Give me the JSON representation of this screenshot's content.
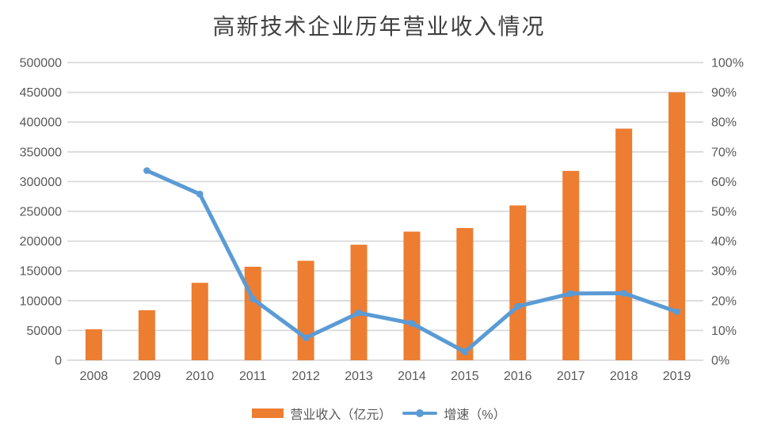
{
  "chart_data": {
    "type": "combo",
    "title": "高新技术企业历年营业收入情况",
    "categories": [
      "2008",
      "2009",
      "2010",
      "2011",
      "2012",
      "2013",
      "2014",
      "2015",
      "2016",
      "2017",
      "2018",
      "2019"
    ],
    "series": [
      {
        "name": "营业收入（亿元）",
        "type": "bar",
        "axis": "left",
        "color": "#ED7D31",
        "values": [
          52000,
          84000,
          130000,
          157000,
          167000,
          194000,
          216000,
          222000,
          260000,
          318000,
          389000,
          450000
        ]
      },
      {
        "name": "增速（%）",
        "type": "line",
        "axis": "right",
        "color": "#5B9BD5",
        "values": [
          null,
          63.7,
          55.8,
          20.6,
          7.5,
          15.9,
          12.4,
          2.8,
          18.1,
          22.4,
          22.5,
          16.3
        ]
      }
    ],
    "left_axis": {
      "min": 0,
      "max": 500000,
      "step": 50000,
      "tick_labels": [
        "0",
        "50000",
        "100000",
        "150000",
        "200000",
        "250000",
        "300000",
        "350000",
        "400000",
        "450000",
        "500000"
      ]
    },
    "right_axis": {
      "min": 0,
      "max": 100,
      "step": 10,
      "tick_labels": [
        "0%",
        "10%",
        "20%",
        "30%",
        "40%",
        "50%",
        "60%",
        "70%",
        "80%",
        "90%",
        "100%"
      ]
    },
    "grid": true,
    "legend_position": "bottom",
    "colors": {
      "grid": "#D9D9D9",
      "axis_text": "#595959",
      "title_text": "#404040",
      "background": "#FFFFFF"
    }
  }
}
